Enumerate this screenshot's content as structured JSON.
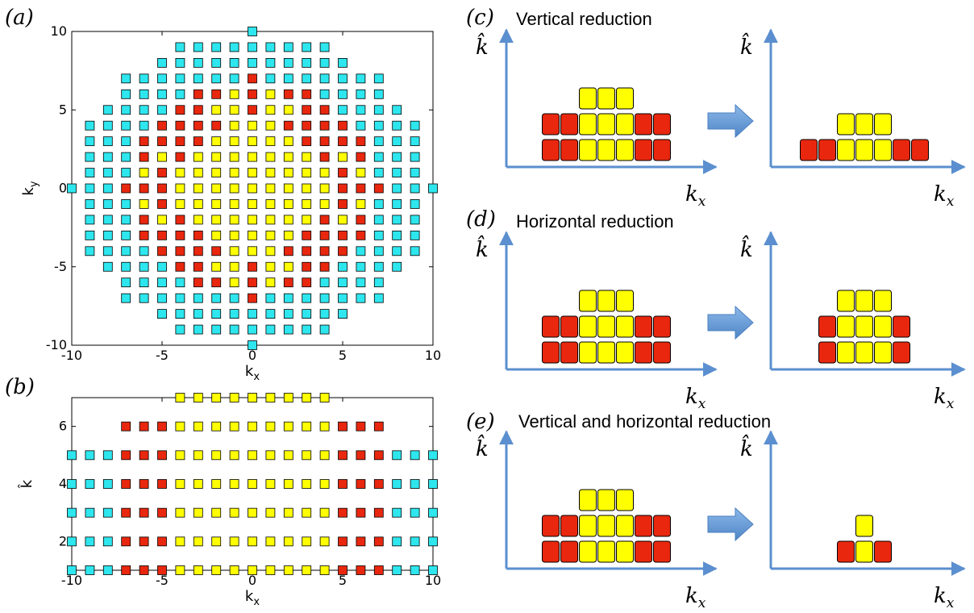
{
  "panels": {
    "a": "(a)",
    "b": "(b)",
    "c": "(c)",
    "d": "(d)",
    "e": "(e)"
  },
  "titles": {
    "c": "Vertical reduction",
    "d": "Horizontal reduction",
    "e": "Vertical and horizontal reduction"
  },
  "diagram_axes": {
    "y_label": "k̂",
    "x_label_main": "k",
    "x_label_sub": "x"
  },
  "colors": {
    "red": "#e8270e",
    "yellow": "#ffff00",
    "cyan": "#2ee6ee",
    "arrow": "#6a9fd8",
    "axis": "#5b8fcf"
  },
  "chart_data": [
    {
      "type": "scatter",
      "panel": "a",
      "xlabel": "k_x",
      "ylabel": "k_y",
      "xlim": [
        -10,
        10
      ],
      "ylim": [
        -10,
        10
      ],
      "xticks": [
        "-10",
        "-5",
        "0",
        "5",
        "10"
      ],
      "yticks": [
        "-10",
        "-5",
        "0",
        "5",
        "10"
      ],
      "marker": "square",
      "rule": "points with kx^2+ky^2 < 100 plus axis points (0,±10),(±10,0); kx^2+ky^2<=17 yellow; (|kx|+|ky|) odd red; |kx|<=|ky| sector yellow else cyan bands",
      "series": [
        {
          "name": "yellow",
          "color": "#ffff00"
        },
        {
          "name": "red",
          "color": "#e8270e"
        },
        {
          "name": "cyan",
          "color": "#2ee6ee"
        }
      ]
    },
    {
      "type": "scatter",
      "panel": "b",
      "xlabel": "k_x",
      "ylabel": "k̂",
      "xlim": [
        -10,
        10
      ],
      "ylim": [
        1,
        7
      ],
      "xticks": [
        "-10",
        "-5",
        "0",
        "5",
        "10"
      ],
      "yticks": [
        "2",
        "4",
        "6"
      ],
      "marker": "square",
      "rows": [
        {
          "k": 1,
          "cyan": [
            -10,
            -9,
            -8,
            8,
            9,
            10
          ],
          "red": [
            -7,
            -6,
            -5,
            5,
            6,
            7
          ],
          "yellow": [
            -4,
            -3,
            -2,
            -1,
            0,
            1,
            2,
            3,
            4
          ]
        },
        {
          "k": 2,
          "cyan": [
            -10,
            -9,
            -8,
            8,
            9,
            10
          ],
          "red": [
            -7,
            -6,
            -5,
            5,
            6,
            7
          ],
          "yellow": [
            -4,
            -3,
            -2,
            -1,
            0,
            1,
            2,
            3,
            4
          ]
        },
        {
          "k": 3,
          "cyan": [
            -10,
            -9,
            -8,
            8,
            9,
            10
          ],
          "red": [
            -7,
            -6,
            -5,
            5,
            6,
            7
          ],
          "yellow": [
            -4,
            -3,
            -2,
            -1,
            0,
            1,
            2,
            3,
            4
          ]
        },
        {
          "k": 4,
          "cyan": [
            -10,
            -9,
            -8,
            8,
            9,
            10
          ],
          "red": [
            -7,
            -6,
            -5,
            5,
            6,
            7
          ],
          "yellow": [
            -4,
            -3,
            -2,
            -1,
            0,
            1,
            2,
            3,
            4
          ]
        },
        {
          "k": 5,
          "cyan": [
            -10,
            -9,
            -8,
            8,
            9,
            10
          ],
          "red": [
            -7,
            -6,
            -5,
            5,
            6,
            7
          ],
          "yellow": [
            -4,
            -3,
            -2,
            -1,
            0,
            1,
            2,
            3,
            4
          ]
        },
        {
          "k": 6,
          "cyan": [],
          "red": [
            -7,
            -6,
            -5,
            5,
            6,
            7
          ],
          "yellow": [
            -4,
            -3,
            -2,
            -1,
            0,
            1,
            2,
            3,
            4
          ]
        },
        {
          "k": 7,
          "cyan": [],
          "red": [],
          "yellow": [
            -4,
            -3,
            -2,
            -1,
            0,
            1,
            2,
            3,
            4
          ]
        }
      ]
    }
  ],
  "diagrams": {
    "c": {
      "before": [
        [
          "R",
          "R",
          "Y",
          "Y",
          "Y",
          "R",
          "R"
        ],
        [
          "R",
          "R",
          "Y",
          "Y",
          "Y",
          "R",
          "R"
        ],
        [
          "Y",
          "Y",
          "Y"
        ]
      ],
      "after": [
        [
          "R",
          "R",
          "Y",
          "Y",
          "Y",
          "R",
          "R"
        ],
        [
          "Y",
          "Y",
          "Y"
        ]
      ]
    },
    "d": {
      "before": [
        [
          "R",
          "R",
          "Y",
          "Y",
          "Y",
          "R",
          "R"
        ],
        [
          "R",
          "R",
          "Y",
          "Y",
          "Y",
          "R",
          "R"
        ],
        [
          "Y",
          "Y",
          "Y"
        ]
      ],
      "after": [
        [
          "R",
          "Y",
          "Y",
          "Y",
          "R"
        ],
        [
          "R",
          "Y",
          "Y",
          "Y",
          "R"
        ],
        [
          "Y",
          "Y",
          "Y"
        ]
      ]
    },
    "e": {
      "before": [
        [
          "R",
          "R",
          "Y",
          "Y",
          "Y",
          "R",
          "R"
        ],
        [
          "R",
          "R",
          "Y",
          "Y",
          "Y",
          "R",
          "R"
        ],
        [
          "Y",
          "Y",
          "Y"
        ]
      ],
      "after": [
        [
          "R",
          "Y",
          "R"
        ],
        [
          "Y"
        ]
      ]
    }
  }
}
